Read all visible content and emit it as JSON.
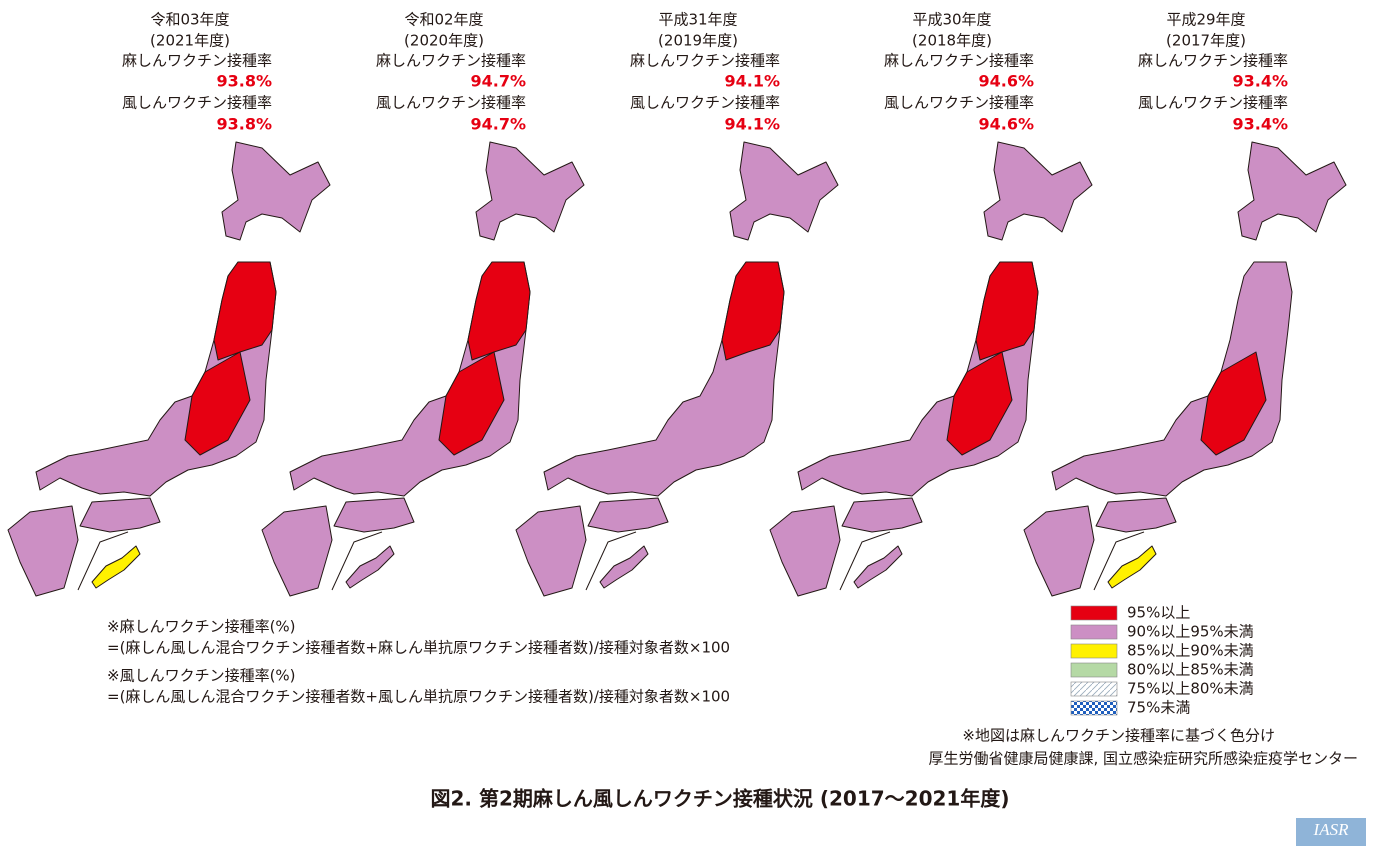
{
  "panels": [
    {
      "era": "令和03年度",
      "year": "(2021年度)",
      "measles_label": "麻しんワクチン接種率",
      "measles_rate": "93.8%",
      "rubella_label": "風しんワクチン接種率",
      "rubella_rate": "93.8%"
    },
    {
      "era": "令和02年度",
      "year": "(2020年度)",
      "measles_label": "麻しんワクチン接種率",
      "measles_rate": "94.7%",
      "rubella_label": "風しんワクチン接種率",
      "rubella_rate": "94.7%"
    },
    {
      "era": "平成31年度",
      "year": "(2019年度)",
      "measles_label": "麻しんワクチン接種率",
      "measles_rate": "94.1%",
      "rubella_label": "風しんワクチン接種率",
      "rubella_rate": "94.1%"
    },
    {
      "era": "平成30年度",
      "year": "(2018年度)",
      "measles_label": "麻しんワクチン接種率",
      "measles_rate": "94.6%",
      "rubella_label": "風しんワクチン接種率",
      "rubella_rate": "94.6%"
    },
    {
      "era": "平成29年度",
      "year": "(2017年度)",
      "measles_label": "麻しんワクチン接種率",
      "measles_rate": "93.4%",
      "rubella_label": "風しんワクチン接種率",
      "rubella_rate": "93.4%"
    }
  ],
  "notes": [
    "※麻しんワクチン接種率(%)",
    "=(麻しん風しん混合ワクチン接種者数+麻しん単抗原ワクチン接種者数)/接種対象者数×100",
    "※風しんワクチン接種率(%)",
    "=(麻しん風しん混合ワクチン接種者数+風しん単抗原ワクチン接種者数)/接種対象者数×100"
  ],
  "legend": [
    {
      "label": "95%以上",
      "color": "#e60012"
    },
    {
      "label": "90%以上95%未満",
      "color": "#cc8fc4"
    },
    {
      "label": "85%以上90%未満",
      "color": "#fff100"
    },
    {
      "label": "80%以上85%未満",
      "color": "#b5d9a5"
    },
    {
      "label": "75%以上80%未満",
      "color": "hatch"
    },
    {
      "label": "75%未満",
      "color": "check"
    }
  ],
  "map_note": "※地図は麻しんワクチン接種率に基づく色分け",
  "source": "厚生労働省健康局健康課, 国立感染症研究所感染症疫学センター",
  "caption": "図2. 第2期麻しん風しんワクチン接種状況 (2017〜2021年度)",
  "logo": "IASR"
}
